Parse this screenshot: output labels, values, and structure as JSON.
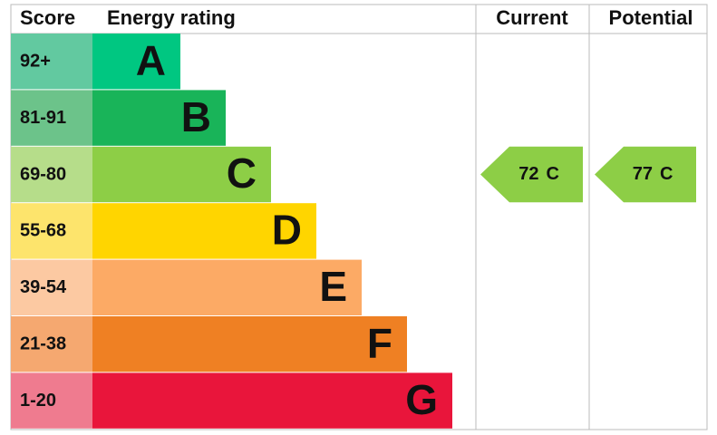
{
  "header": {
    "score": "Score",
    "energy_rating": "Energy rating",
    "current": "Current",
    "potential": "Potential"
  },
  "bands": [
    {
      "score": "92+",
      "letter": "A",
      "score_color": "#62c9a0",
      "color": "#00c781"
    },
    {
      "score": "81-91",
      "letter": "B",
      "score_color": "#6cc38a",
      "color": "#19b459"
    },
    {
      "score": "69-80",
      "letter": "C",
      "score_color": "#b6dd8a",
      "color": "#8dce46"
    },
    {
      "score": "55-68",
      "letter": "D",
      "score_color": "#fde46c",
      "color": "#ffd500"
    },
    {
      "score": "39-54",
      "letter": "E",
      "score_color": "#fcc9a2",
      "color": "#fcaa65"
    },
    {
      "score": "21-38",
      "letter": "F",
      "score_color": "#f5a870",
      "color": "#ef8023"
    },
    {
      "score": "1-20",
      "letter": "G",
      "score_color": "#ef7b8f",
      "color": "#e9153b"
    }
  ],
  "current": {
    "value": 72,
    "letter": "C"
  },
  "potential": {
    "value": 77,
    "letter": "C"
  }
}
